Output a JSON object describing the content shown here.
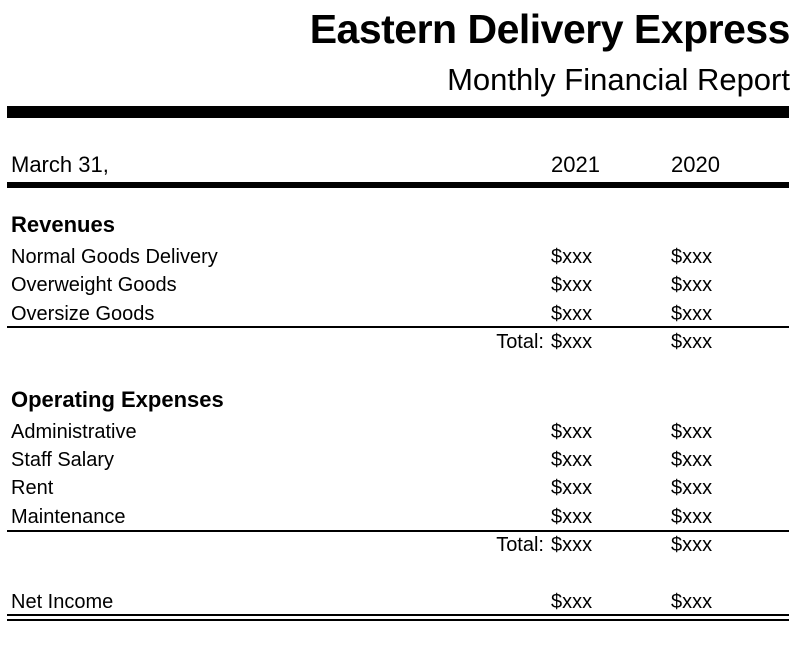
{
  "header": {
    "company": "Eastern Delivery Express",
    "subtitle": "Monthly Financial Report"
  },
  "columns": {
    "date_label": "March 31,",
    "year1": "2021",
    "year2": "2020"
  },
  "revenues": {
    "heading": "Revenues",
    "rows": [
      {
        "label": "Normal Goods Delivery",
        "v2021": "$xxx",
        "v2020": "$xxx"
      },
      {
        "label": "Overweight Goods",
        "v2021": "$xxx",
        "v2020": "$xxx"
      },
      {
        "label": "Oversize Goods",
        "v2021": "$xxx",
        "v2020": "$xxx"
      }
    ],
    "total": {
      "label": "Total:",
      "v2021": "$xxx",
      "v2020": "$xxx"
    }
  },
  "expenses": {
    "heading": "Operating Expenses",
    "rows": [
      {
        "label": "Administrative",
        "v2021": "$xxx",
        "v2020": "$xxx"
      },
      {
        "label": "Staff Salary",
        "v2021": "$xxx",
        "v2020": "$xxx"
      },
      {
        "label": "Rent",
        "v2021": "$xxx",
        "v2020": "$xxx"
      },
      {
        "label": "Maintenance",
        "v2021": "$xxx",
        "v2020": "$xxx"
      }
    ],
    "total": {
      "label": "Total:",
      "v2021": "$xxx",
      "v2020": "$xxx"
    }
  },
  "net_income": {
    "label": "Net Income",
    "v2021": "$xxx",
    "v2020": "$xxx"
  }
}
